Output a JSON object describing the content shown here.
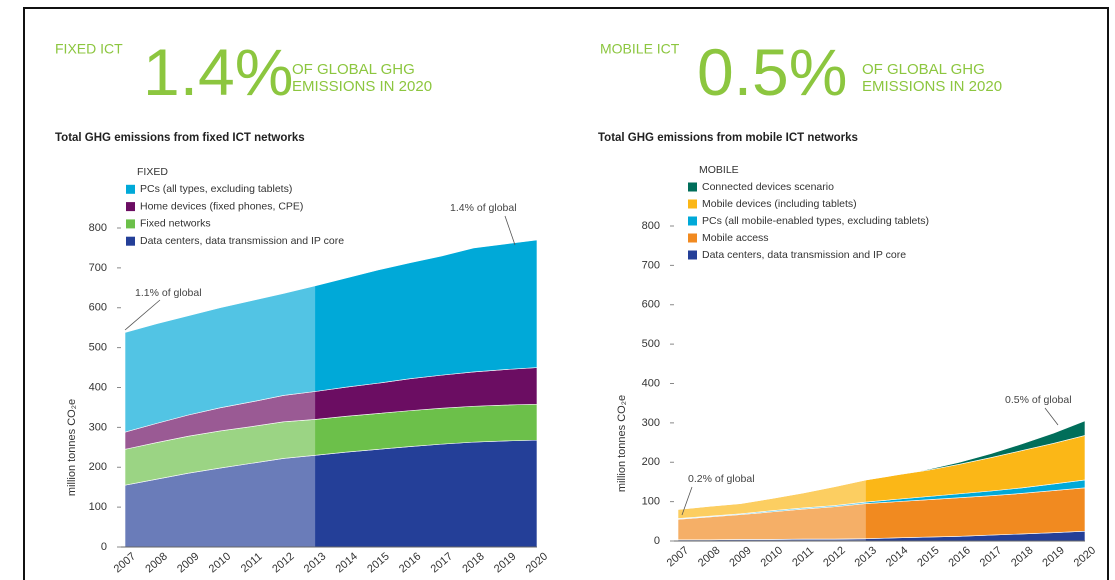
{
  "chart_data": [
    {
      "type": "area",
      "label": "FIXED ICT",
      "headline": "1.4%",
      "headline_note": [
        "OF GLOBAL GHG",
        "EMISSIONS IN 2020"
      ],
      "title": "Total GHG emissions from fixed ICT networks",
      "legend_title": "FIXED",
      "y_label": "million tonnes CO₂e",
      "categories": [
        "2007",
        "2008",
        "2009",
        "2010",
        "2011",
        "2012",
        "2013",
        "2014",
        "2015",
        "2016",
        "2017",
        "2018",
        "2019",
        "2020"
      ],
      "series": [
        {
          "name": "PCs (all types, excluding tablets)",
          "color": "#00a9d8",
          "values": [
            250,
            250,
            249,
            251,
            254,
            256,
            265,
            274,
            284,
            291,
            299,
            311,
            315,
            320
          ]
        },
        {
          "name": "Home devices (fixed phones, CPE)",
          "color": "#6b0d62",
          "values": [
            43,
            48,
            53,
            58,
            62,
            66,
            70,
            73,
            76,
            80,
            83,
            86,
            89,
            92
          ]
        },
        {
          "name": "Fixed networks",
          "color": "#6cc04a",
          "values": [
            90,
            92,
            93,
            93,
            92,
            92,
            90,
            90,
            90,
            90,
            90,
            90,
            90,
            90
          ]
        },
        {
          "name": "Data centers, data transmission and IP core",
          "color": "#243f98",
          "values": [
            155,
            170,
            185,
            198,
            210,
            222,
            230,
            238,
            245,
            252,
            258,
            263,
            266,
            268
          ]
        }
      ],
      "ylim": [
        0,
        800
      ],
      "yticks": [
        0,
        100,
        200,
        300,
        400,
        500,
        600,
        700,
        800
      ],
      "annotations": [
        "1.1% of global",
        "1.4% of global"
      ]
    },
    {
      "type": "area",
      "label": "MOBILE ICT",
      "headline": "0.5%",
      "headline_note": [
        "OF GLOBAL GHG",
        "EMISSIONS IN 2020"
      ],
      "title": "Total GHG emissions from mobile ICT networks",
      "legend_title": "MOBILE",
      "y_label": "million tonnes CO₂e",
      "categories": [
        "2007",
        "2008",
        "2009",
        "2010",
        "2011",
        "2012",
        "2013",
        "2014",
        "2015",
        "2016",
        "2017",
        "2018",
        "2019",
        "2020"
      ],
      "series": [
        {
          "name": "Connected devices scenario",
          "color": "#006e5a",
          "values": [
            0,
            0,
            0,
            0,
            0,
            0,
            0,
            0,
            2,
            5,
            10,
            17,
            26,
            37
          ]
        },
        {
          "name": "Mobile devices (including tablets)",
          "color": "#fbb717",
          "values": [
            23,
            25,
            26,
            31,
            38,
            48,
            56,
            62,
            67,
            75,
            85,
            95,
            103,
            113
          ]
        },
        {
          "name": "PCs (all mobile-enabled types, excluding  tablets)",
          "color": "#00a9d8",
          "values": [
            2,
            2,
            2,
            3,
            3,
            3,
            4,
            6,
            8,
            10,
            12,
            14,
            17,
            20
          ]
        },
        {
          "name": "Mobile access",
          "color": "#f18a20",
          "values": [
            52,
            58,
            63,
            70,
            76,
            82,
            89,
            92,
            95,
            98,
            100,
            103,
            107,
            110
          ]
        },
        {
          "name": "Data centers, data transmission and IP core",
          "color": "#243f98",
          "values": [
            3,
            3,
            4,
            4,
            5,
            5,
            6,
            8,
            10,
            12,
            15,
            18,
            21,
            25
          ]
        }
      ],
      "ylim": [
        0,
        800
      ],
      "yticks": [
        0,
        100,
        200,
        300,
        400,
        500,
        600,
        700,
        800
      ],
      "annotations": [
        "0.2% of global",
        "0.5% of global"
      ]
    }
  ]
}
